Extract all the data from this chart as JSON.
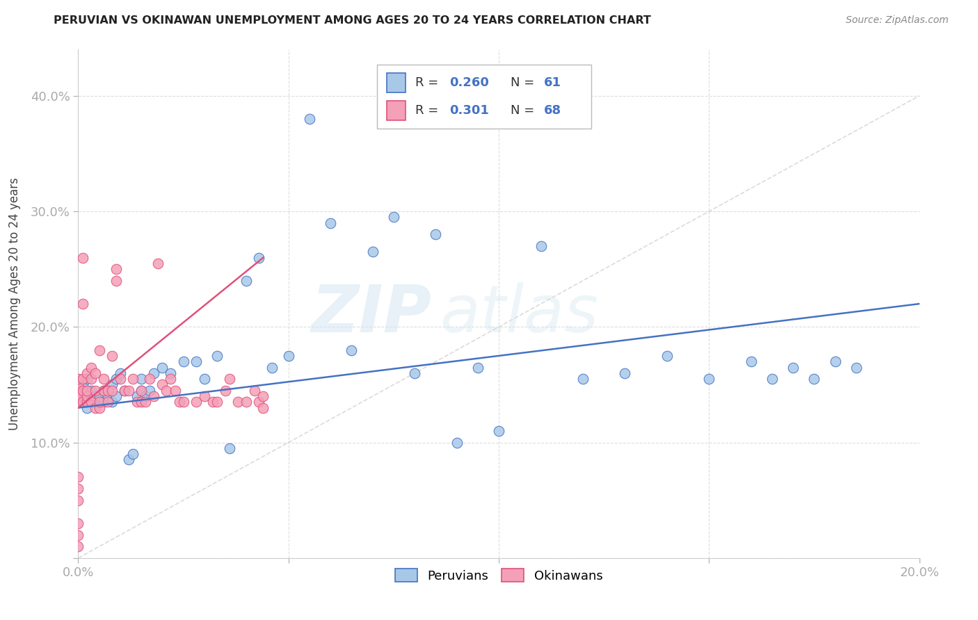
{
  "title": "PERUVIAN VS OKINAWAN UNEMPLOYMENT AMONG AGES 20 TO 24 YEARS CORRELATION CHART",
  "source": "Source: ZipAtlas.com",
  "ylabel": "Unemployment Among Ages 20 to 24 years",
  "xlim": [
    0.0,
    0.2
  ],
  "ylim": [
    0.0,
    0.44
  ],
  "xticks": [
    0.0,
    0.05,
    0.1,
    0.15,
    0.2
  ],
  "xticklabels": [
    "0.0%",
    "",
    "",
    "",
    "20.0%"
  ],
  "yticks": [
    0.0,
    0.1,
    0.2,
    0.3,
    0.4
  ],
  "yticklabels": [
    "",
    "10.0%",
    "20.0%",
    "30.0%",
    "40.0%"
  ],
  "peruvian_color": "#a8c8e8",
  "okinawan_color": "#f4a0b8",
  "peruvian_line_color": "#4472c4",
  "okinawan_line_color": "#e0507a",
  "R_peruvian": "0.260",
  "N_peruvian": "61",
  "R_okinawan": "0.301",
  "N_okinawan": "68",
  "peru_line_x": [
    0.0,
    0.2
  ],
  "peru_line_y": [
    0.13,
    0.22
  ],
  "oki_line_x": [
    0.0,
    0.044
  ],
  "oki_line_y": [
    0.13,
    0.26
  ],
  "diag_line": [
    [
      0.0,
      0.2
    ],
    [
      0.0,
      0.4
    ]
  ],
  "peruvians_x": [
    0.001,
    0.001,
    0.001,
    0.002,
    0.002,
    0.002,
    0.003,
    0.003,
    0.004,
    0.004,
    0.005,
    0.005,
    0.006,
    0.006,
    0.007,
    0.008,
    0.008,
    0.009,
    0.009,
    0.01,
    0.011,
    0.012,
    0.013,
    0.014,
    0.015,
    0.015,
    0.016,
    0.017,
    0.018,
    0.02,
    0.022,
    0.025,
    0.028,
    0.03,
    0.033,
    0.036,
    0.04,
    0.043,
    0.046,
    0.05,
    0.055,
    0.06,
    0.065,
    0.07,
    0.075,
    0.08,
    0.085,
    0.09,
    0.095,
    0.1,
    0.11,
    0.12,
    0.13,
    0.14,
    0.15,
    0.16,
    0.165,
    0.17,
    0.175,
    0.18,
    0.185
  ],
  "peruvians_y": [
    0.135,
    0.145,
    0.15,
    0.13,
    0.14,
    0.155,
    0.135,
    0.145,
    0.135,
    0.14,
    0.135,
    0.14,
    0.135,
    0.145,
    0.14,
    0.135,
    0.15,
    0.14,
    0.155,
    0.16,
    0.145,
    0.085,
    0.09,
    0.14,
    0.145,
    0.155,
    0.14,
    0.145,
    0.16,
    0.165,
    0.16,
    0.17,
    0.17,
    0.155,
    0.175,
    0.095,
    0.24,
    0.26,
    0.165,
    0.175,
    0.38,
    0.29,
    0.18,
    0.265,
    0.295,
    0.16,
    0.28,
    0.1,
    0.165,
    0.11,
    0.27,
    0.155,
    0.16,
    0.175,
    0.155,
    0.17,
    0.155,
    0.165,
    0.155,
    0.17,
    0.165
  ],
  "okinawans_x": [
    0.0,
    0.0,
    0.0,
    0.0,
    0.0,
    0.0,
    0.0,
    0.0,
    0.0,
    0.0,
    0.0,
    0.0,
    0.0,
    0.001,
    0.001,
    0.001,
    0.001,
    0.001,
    0.002,
    0.002,
    0.002,
    0.002,
    0.003,
    0.003,
    0.003,
    0.004,
    0.004,
    0.004,
    0.005,
    0.005,
    0.005,
    0.006,
    0.006,
    0.007,
    0.007,
    0.008,
    0.008,
    0.009,
    0.009,
    0.01,
    0.011,
    0.012,
    0.013,
    0.014,
    0.015,
    0.015,
    0.016,
    0.017,
    0.018,
    0.019,
    0.02,
    0.021,
    0.022,
    0.023,
    0.024,
    0.025,
    0.028,
    0.03,
    0.032,
    0.033,
    0.035,
    0.036,
    0.038,
    0.04,
    0.042,
    0.043,
    0.044,
    0.044
  ],
  "okinawans_y": [
    0.135,
    0.14,
    0.145,
    0.15,
    0.155,
    0.135,
    0.14,
    0.01,
    0.02,
    0.03,
    0.05,
    0.06,
    0.07,
    0.135,
    0.145,
    0.155,
    0.22,
    0.26,
    0.135,
    0.14,
    0.145,
    0.16,
    0.135,
    0.155,
    0.165,
    0.13,
    0.145,
    0.16,
    0.13,
    0.135,
    0.18,
    0.145,
    0.155,
    0.135,
    0.145,
    0.145,
    0.175,
    0.24,
    0.25,
    0.155,
    0.145,
    0.145,
    0.155,
    0.135,
    0.135,
    0.145,
    0.135,
    0.155,
    0.14,
    0.255,
    0.15,
    0.145,
    0.155,
    0.145,
    0.135,
    0.135,
    0.135,
    0.14,
    0.135,
    0.135,
    0.145,
    0.155,
    0.135,
    0.135,
    0.145,
    0.135,
    0.13,
    0.14
  ]
}
